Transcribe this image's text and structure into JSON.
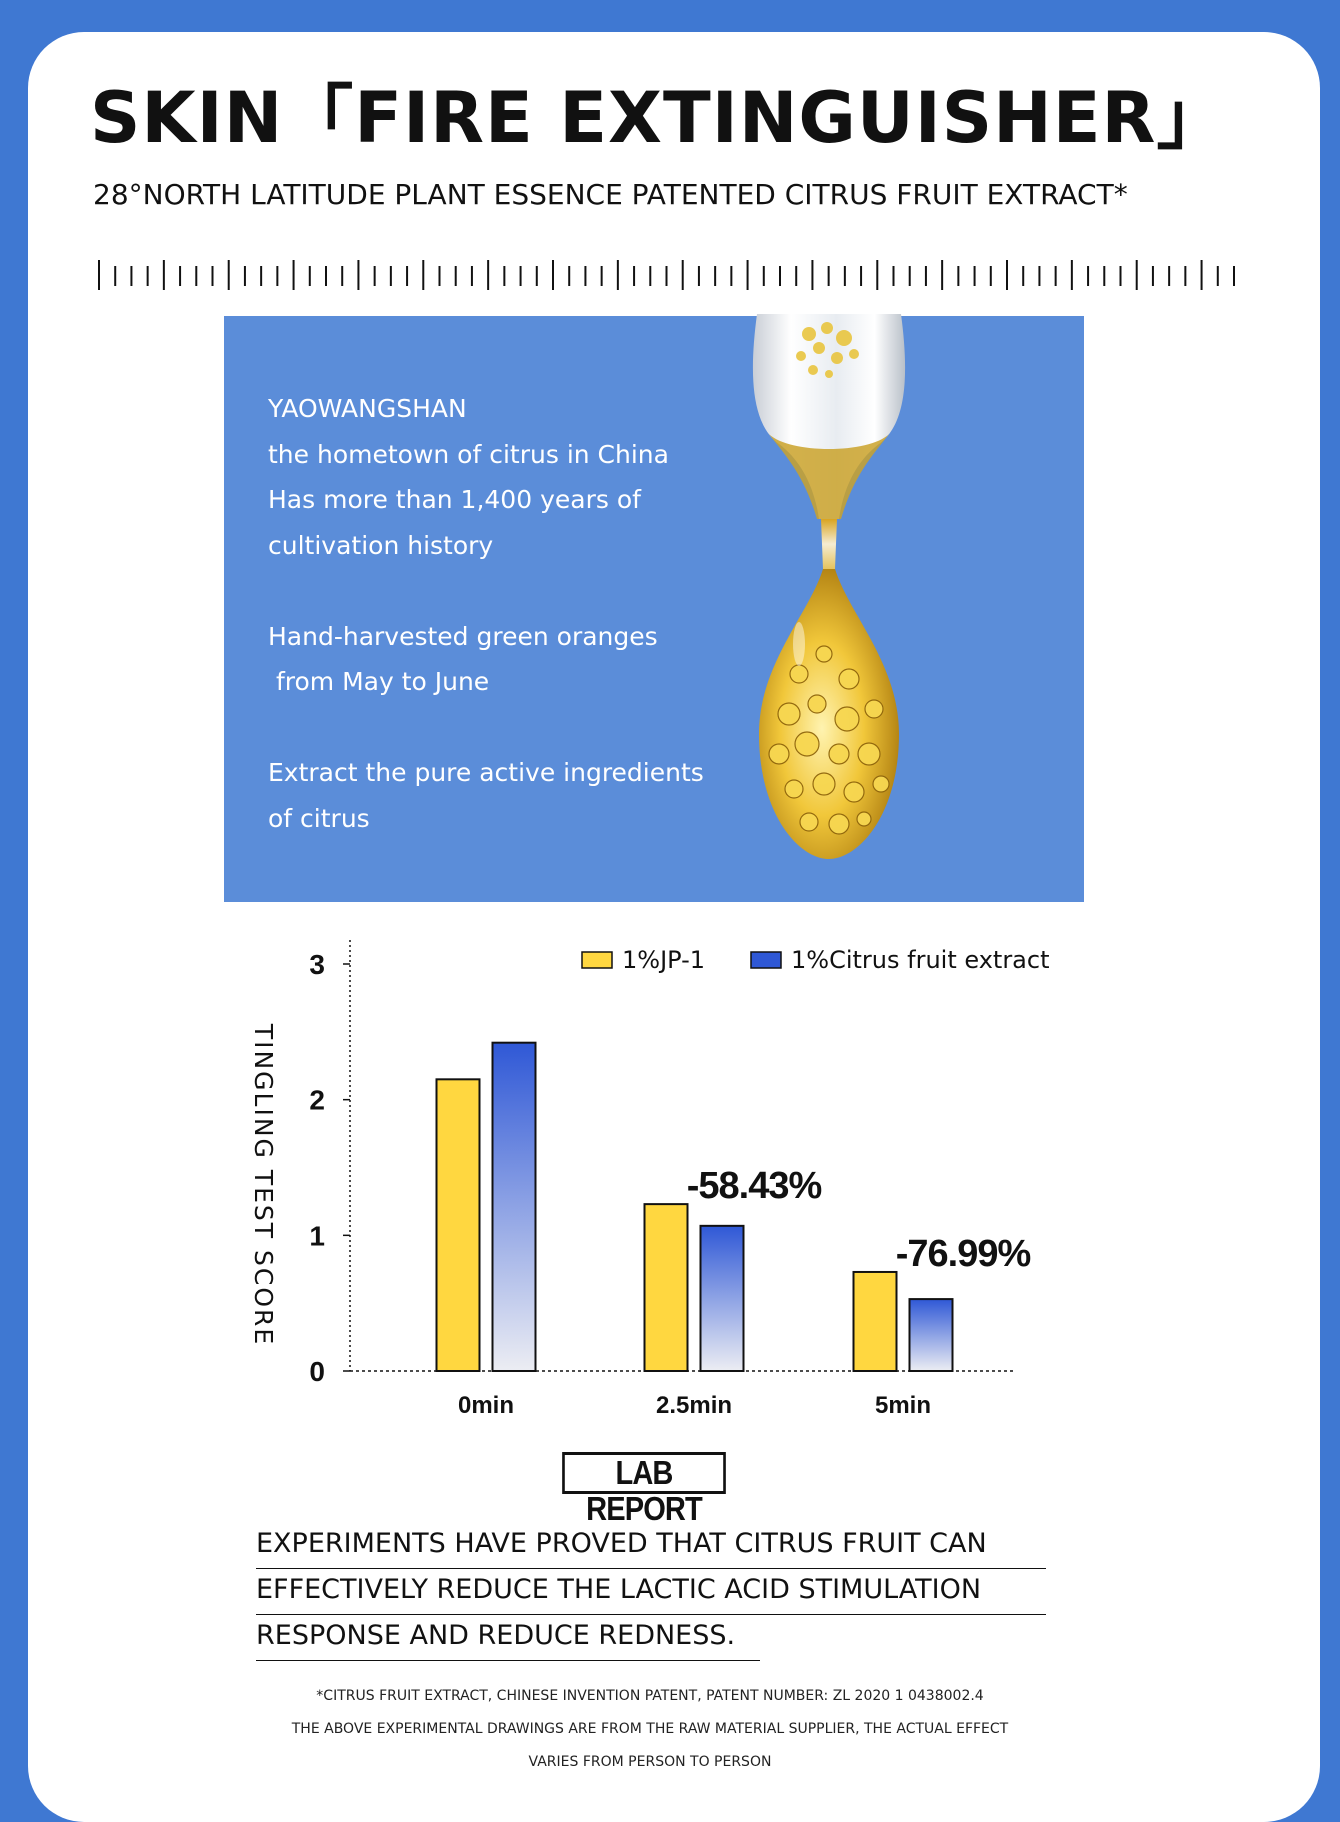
{
  "header": {
    "title": "SKIN「FIRE EXTINGUISHER」",
    "subtitle": "28°NORTH LATITUDE PLANT ESSENCE PATENTED CITRUS FRUIT EXTRACT*"
  },
  "info_panel": {
    "lines": [
      "YAOWANGSHAN",
      "the hometown of citrus in China",
      "Has more than 1,400 years of",
      "cultivation history",
      "",
      "Hand-harvested green oranges",
      " from May to June",
      "",
      "Extract the pure active ingredients",
      "of citrus"
    ],
    "image": "hourglass-citrus-droplet"
  },
  "colors": {
    "page_background": "#3f78d2",
    "panel_background": "#5b8dd9",
    "series_jp1": "#ffd740",
    "series_citrus": "#2f58d6"
  },
  "chart_data": {
    "type": "bar",
    "ylabel": "TINGLING TEST SCORE",
    "xlabel": "",
    "categories": [
      "0min",
      "2.5min",
      "5min"
    ],
    "ylim": [
      0,
      3
    ],
    "yticks": [
      0,
      1,
      2,
      3
    ],
    "grid": false,
    "legend_position": "top-right",
    "series": [
      {
        "name": "1%JP-1",
        "values": [
          2.15,
          1.23,
          0.73
        ]
      },
      {
        "name": "1%Citrus fruit extract",
        "values": [
          2.42,
          1.07,
          0.53
        ]
      }
    ],
    "annotations": [
      {
        "category": "2.5min",
        "text": "-58.43%"
      },
      {
        "category": "5min",
        "text": "-76.99%"
      }
    ]
  },
  "lab_report_label": "LAB REPORT",
  "conclusion_lines": [
    "EXPERIMENTS HAVE PROVED THAT CITRUS FRUIT CAN",
    "EFFECTIVELY REDUCE THE LACTIC ACID STIMULATION",
    "RESPONSE AND REDUCE REDNESS."
  ],
  "footnotes": [
    "*CITRUS FRUIT EXTRACT, CHINESE INVENTION PATENT, PATENT NUMBER: ZL 2020 1 0438002.4",
    "THE ABOVE EXPERIMENTAL DRAWINGS ARE FROM THE RAW MATERIAL SUPPLIER, THE ACTUAL EFFECT",
    "VARIES FROM PERSON TO PERSON"
  ]
}
